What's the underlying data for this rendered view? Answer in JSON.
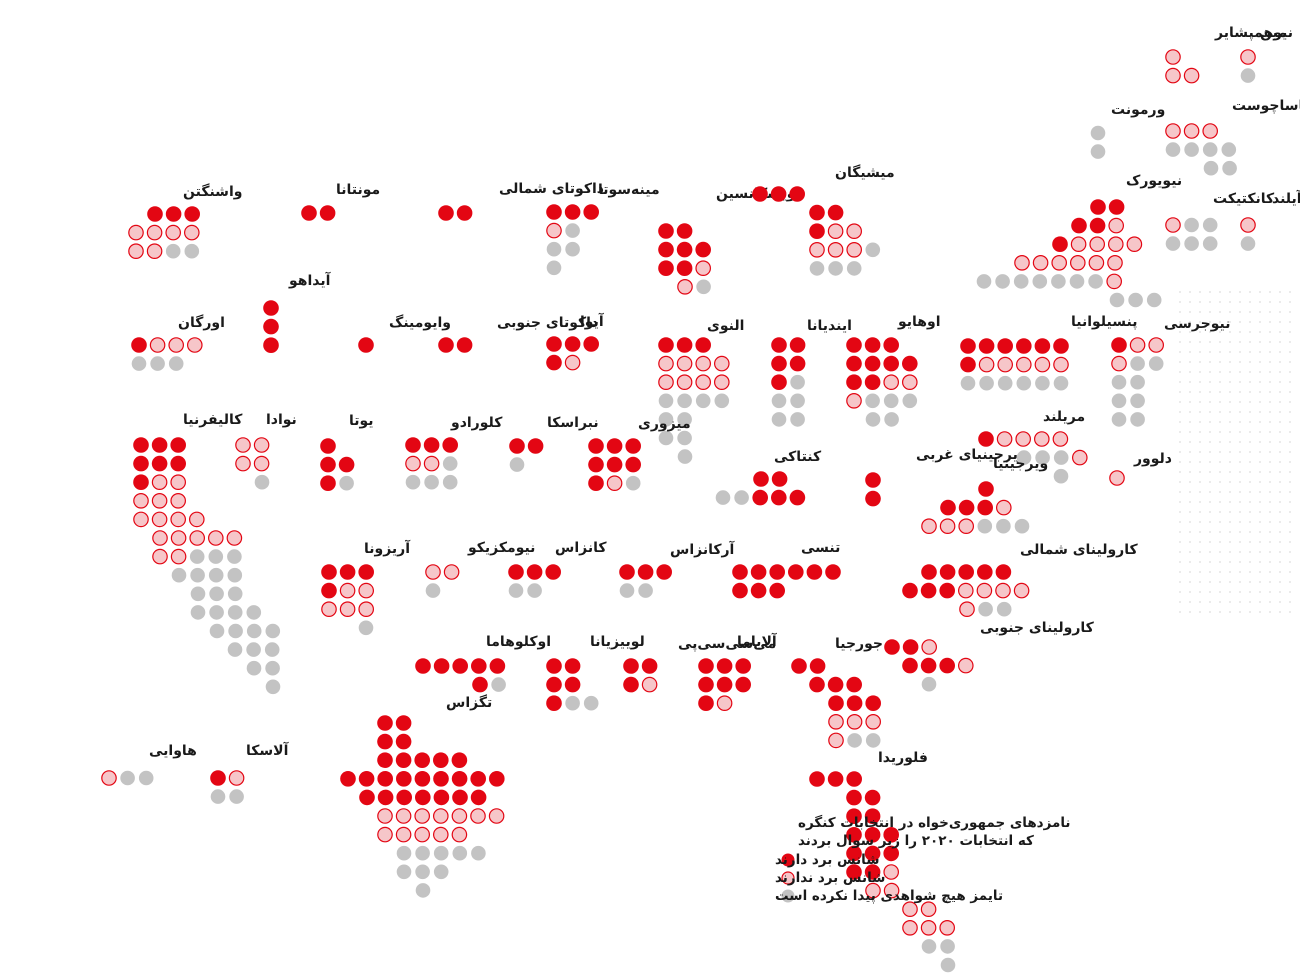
{
  "colors": {
    "winning": "#e30613",
    "losing_fill": "#f6c6c9",
    "losing_stroke": "#e30613",
    "no_evidence": "#c3c3c3"
  },
  "legend": {
    "title_line1": "نامزدهای جمهوری‌خواه در انتخابات کنگره",
    "title_line2": "که انتخابات ۲۰۲۰ را زیر سوال بردند",
    "items": [
      {
        "key": "winning",
        "label": "شانس برد دارند"
      },
      {
        "key": "losing",
        "label": "شانس برد ندارند"
      },
      {
        "key": "no_evidence",
        "label": "تایمز هیچ شواهدی پیدا نکرده است"
      }
    ]
  },
  "states": [
    {
      "id": "maine",
      "name": "مین",
      "rows": [
        "L",
        "G"
      ]
    },
    {
      "id": "new-hampshire",
      "name": "نیوهمپشایر",
      "rows": [
        "L",
        "LL"
      ]
    },
    {
      "id": "vermont",
      "name": "ورمونت",
      "rows": [
        "G",
        "G"
      ]
    },
    {
      "id": "massachusetts",
      "name": "ماساچوست",
      "rows": [
        "LLL",
        "GGGG",
        "GG"
      ]
    },
    {
      "id": "new-york",
      "name": "نیویورک",
      "rows": [
        "WW",
        "WWL",
        "WLLLL",
        "LLLLLL",
        "GGGGGGGL",
        "GGG"
      ]
    },
    {
      "id": "connecticut",
      "name": "کانکتیکت",
      "rows": [
        "LGG",
        "GGG"
      ]
    },
    {
      "id": "rhode-island",
      "name": "رودآیلند",
      "rows": [
        "L",
        "G"
      ]
    },
    {
      "id": "washington",
      "name": "واشنگتن",
      "rows": [
        "WWW",
        "LLLL",
        "LLGG"
      ]
    },
    {
      "id": "montana",
      "name": "مونتانا",
      "rows": [
        "WW"
      ]
    },
    {
      "id": "north-dakota",
      "name": "داکوتای شمالی",
      "rows": [
        "WW"
      ]
    },
    {
      "id": "minnesota",
      "name": "مینه‌سوتا",
      "rows": [
        "WWW",
        "LG",
        "GG",
        "G"
      ]
    },
    {
      "id": "wisconsin",
      "name": "ویسکانسین",
      "rows": [
        "WW",
        "WWW",
        "WWL",
        "LG"
      ]
    },
    {
      "id": "michigan",
      "name": "میشیگان",
      "rows": [
        "WWW",
        "WW",
        "WLL",
        "LLLG",
        "GGG"
      ]
    },
    {
      "id": "idaho",
      "name": "آیداهو",
      "rows": [
        "W",
        "W",
        "W"
      ]
    },
    {
      "id": "oregon",
      "name": "اورگان",
      "rows": [
        "WLLL",
        "GGG"
      ]
    },
    {
      "id": "wyoming",
      "name": "وایومینگ",
      "rows": [
        "W"
      ]
    },
    {
      "id": "south-dakota",
      "name": "داکوتای جنوبی",
      "rows": [
        "WW"
      ]
    },
    {
      "id": "iowa",
      "name": "آیوا",
      "rows": [
        "WWW",
        "WL"
      ]
    },
    {
      "id": "illinois",
      "name": "النوی",
      "rows": [
        "WWW",
        "LLLL",
        "LLLL",
        "GGGG",
        "GG",
        "GG",
        "G"
      ]
    },
    {
      "id": "indiana",
      "name": "ایندیانا",
      "rows": [
        "WW",
        "WW",
        "WG",
        "GG",
        "GG"
      ]
    },
    {
      "id": "ohio",
      "name": "اوهایو",
      "rows": [
        "WWW",
        "WWWW",
        "WWLL",
        "LGGG",
        "GG"
      ]
    },
    {
      "id": "pennsylvania",
      "name": "پنسیلوانیا",
      "rows": [
        "WWWWWW",
        "WLLLLL",
        "GGGGGG"
      ]
    },
    {
      "id": "new-jersey",
      "name": "نیوجرسی",
      "rows": [
        "WLL",
        "LGG",
        "GG",
        "GG",
        "GG"
      ]
    },
    {
      "id": "california",
      "name": "کالیفرنیا",
      "rows": [
        "WWW",
        "WWW",
        "WLL",
        "LLL",
        "LLLL",
        "LLLLL",
        "LLGGG",
        "GGGG",
        "GGG",
        "GGGG",
        "GGGG",
        "GGG",
        "GG",
        "G"
      ]
    },
    {
      "id": "nevada",
      "name": "نوادا",
      "rows": [
        "LL",
        "LL",
        "G"
      ]
    },
    {
      "id": "utah",
      "name": "یوتا",
      "rows": [
        "W",
        "WW",
        "WG"
      ]
    },
    {
      "id": "colorado",
      "name": "کلورادو",
      "rows": [
        "WWW",
        "LLG",
        "GGG"
      ]
    },
    {
      "id": "nebraska",
      "name": "نبراسکا",
      "rows": [
        "WW",
        "G"
      ]
    },
    {
      "id": "missouri",
      "name": "میزوری",
      "rows": [
        "WWW",
        "WWW",
        "WLG"
      ]
    },
    {
      "id": "kentucky",
      "name": "کنتاکی",
      "rows": [
        "WW",
        "GGWWW"
      ]
    },
    {
      "id": "west-virginia",
      "name": "ویرجینیای غربی",
      "rows": [
        "W",
        "W"
      ]
    },
    {
      "id": "maryland",
      "name": "مریلند",
      "rows": [
        "WLLLL",
        "GGGL",
        "G"
      ]
    },
    {
      "id": "delaware",
      "name": "دلوور",
      "rows": [
        "L"
      ]
    },
    {
      "id": "virginia",
      "name": "ویرجینیا",
      "rows": [
        "W",
        "WWWL",
        "LLLGGG"
      ]
    },
    {
      "id": "arizona",
      "name": "آریزونا",
      "rows": [
        "WWW",
        "WLL",
        "LLL",
        "G"
      ]
    },
    {
      "id": "new-mexico",
      "name": "نیومکزیکو",
      "rows": [
        "LL",
        "G"
      ]
    },
    {
      "id": "kansas",
      "name": "کانزاس",
      "rows": [
        "WWW",
        "GG"
      ]
    },
    {
      "id": "arkansas",
      "name": "آرکانزاس",
      "rows": [
        "WWW",
        "GG"
      ]
    },
    {
      "id": "tennessee",
      "name": "تنسی",
      "rows": [
        "WWWWWW",
        "WWW"
      ]
    },
    {
      "id": "north-carolina",
      "name": "کارولینای شمالی",
      "rows": [
        "WWWWW",
        "WWWLLLL",
        "LGG"
      ]
    },
    {
      "id": "south-carolina",
      "name": "کارولینای جنوبی",
      "rows": [
        "WWL",
        "WWWL",
        "G"
      ]
    },
    {
      "id": "oklahoma",
      "name": "اوکلوهاما",
      "rows": [
        "WWWWW",
        "WG"
      ]
    },
    {
      "id": "louisiana",
      "name": "لوییزیانا",
      "rows": [
        "WW",
        "WW",
        "WGG"
      ]
    },
    {
      "id": "mississippi",
      "name": "می‌سی‌سی‌پی",
      "rows": [
        "WW",
        "WL"
      ]
    },
    {
      "id": "alabama",
      "name": "آلاباما",
      "rows": [
        "WWW",
        "WWW",
        "WL"
      ]
    },
    {
      "id": "georgia",
      "name": "جورجیا",
      "rows": [
        "WW",
        "WWW",
        "WWW",
        "LLL",
        "LGG"
      ]
    },
    {
      "id": "florida",
      "name": "فلوریدا",
      "rows": [
        "WWW",
        "WW",
        "WW",
        "WWW",
        "WWW",
        "WWL",
        "LL",
        "LL",
        "LLL",
        "GG",
        "G"
      ]
    },
    {
      "id": "texas",
      "name": "تگزاس",
      "rows": [
        "WW",
        "WW",
        "WWWWW",
        "WWWWWWWWW",
        "WWWWWWW",
        "LLLLLLL",
        "LLLLL",
        "GGGGG",
        "GGG",
        "G"
      ]
    },
    {
      "id": "alaska",
      "name": "آلاسکا",
      "rows": [
        "WL",
        "GG"
      ]
    },
    {
      "id": "hawaii",
      "name": "هاوایی",
      "rows": [
        "LGG"
      ]
    }
  ]
}
